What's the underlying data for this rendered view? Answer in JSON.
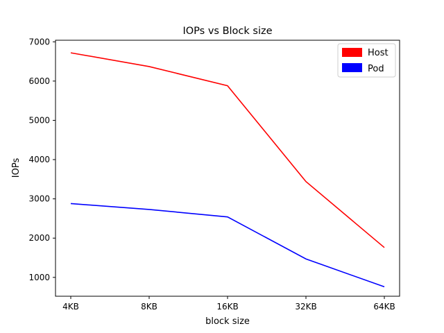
{
  "chart_data": {
    "type": "line",
    "title": "IOPs vs Block size",
    "xlabel": "block size",
    "ylabel": "IOPs",
    "categories": [
      "4KB",
      "8KB",
      "16KB",
      "32KB",
      "64KB"
    ],
    "ylim": [
      520,
      7040
    ],
    "yticks": [
      1000,
      2000,
      3000,
      4000,
      5000,
      6000,
      7000
    ],
    "grid": false,
    "legend_position": "top-right",
    "series": [
      {
        "name": "Host",
        "color": "#ff0000",
        "values": [
          6720,
          6370,
          5880,
          3440,
          1760
        ]
      },
      {
        "name": "Pod",
        "color": "#0000ff",
        "values": [
          2880,
          2730,
          2540,
          1470,
          760
        ]
      }
    ]
  }
}
